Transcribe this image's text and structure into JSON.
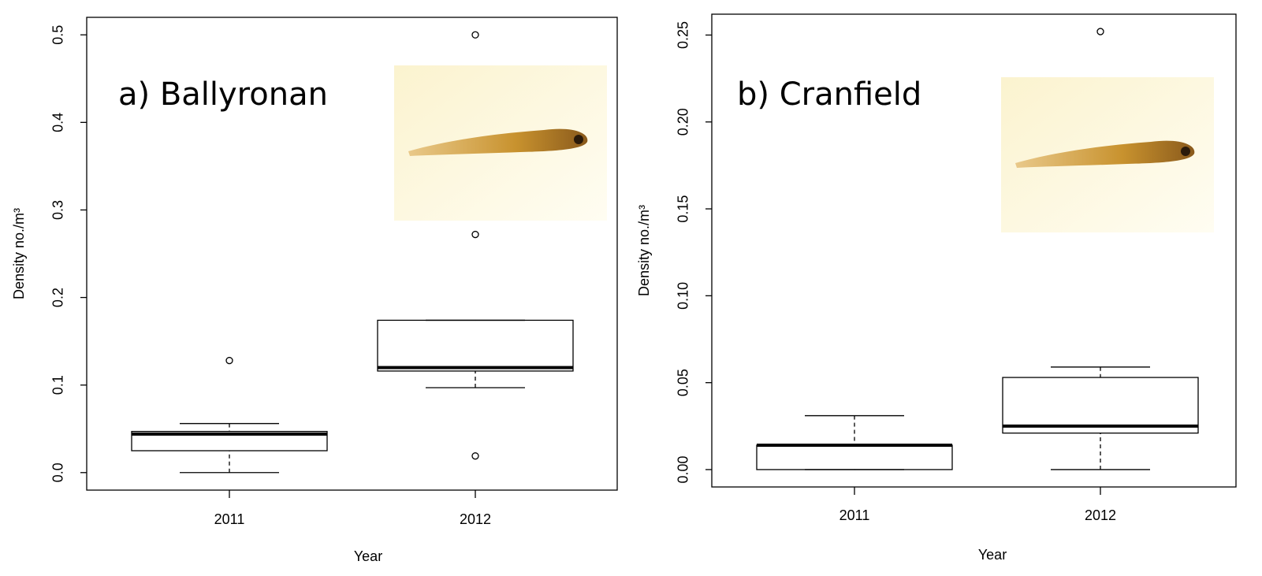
{
  "chart_data": [
    {
      "type": "box",
      "title": "a) Ballyronan",
      "xlabel": "Year",
      "ylabel": "Density no./m³",
      "categories": [
        "2011",
        "2012"
      ],
      "boxes": [
        {
          "min": 0.0,
          "q1": 0.025,
          "median": 0.044,
          "q3": 0.047,
          "max": 0.056,
          "outliers": [
            0.128
          ]
        },
        {
          "min": 0.097,
          "q1": 0.116,
          "median": 0.12,
          "q3": 0.174,
          "max": 0.174,
          "outliers": [
            0.019,
            0.272,
            0.5
          ]
        }
      ],
      "ylim": [
        -0.02,
        0.52
      ],
      "yticks": [
        {
          "value": 0,
          "label": "0.0"
        },
        0.1,
        0.2,
        0.3,
        0.4,
        0.5
      ]
    },
    {
      "type": "box",
      "title": "b) Cranfield",
      "xlabel": "Year",
      "ylabel": "Density no./m³",
      "categories": [
        "2011",
        "2012"
      ],
      "boxes": [
        {
          "min": 0.0,
          "q1": 0.0,
          "median": 0.014,
          "q3": 0.014,
          "max": 0.031,
          "outliers": []
        },
        {
          "min": 0.0,
          "q1": 0.021,
          "median": 0.025,
          "q3": 0.053,
          "max": 0.059,
          "outliers": [
            0.252
          ]
        }
      ],
      "ylim": [
        -0.01,
        0.262
      ],
      "yticks": [
        {
          "value": 0,
          "label": "0.00"
        },
        {
          "value": 0.05,
          "label": "0.05"
        },
        {
          "value": 0.1,
          "label": "0.10"
        },
        {
          "value": 0.15,
          "label": "0.15"
        },
        {
          "value": 0.2,
          "label": "0.20"
        },
        {
          "value": 0.25,
          "label": "0.25"
        }
      ]
    }
  ]
}
